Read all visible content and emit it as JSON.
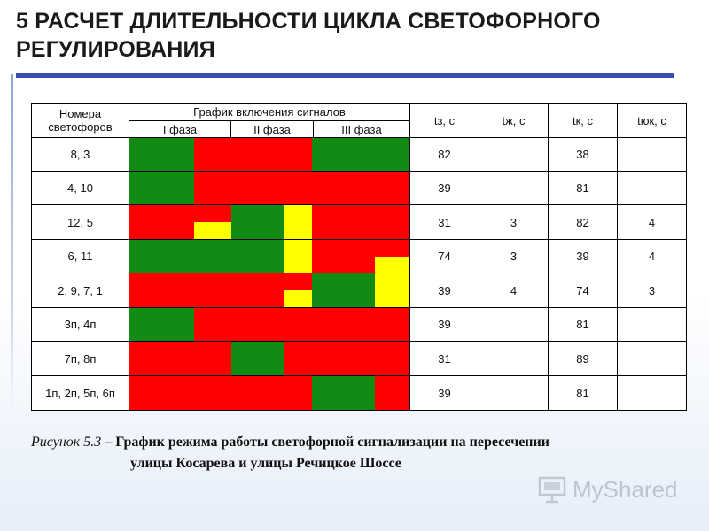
{
  "slide": {
    "title": "5 РАСЧЕТ ДЛИТЕЛЬНОСТИ ЦИКЛА СВЕТОФОРНОГО РЕГУЛИРОВАНИЯ"
  },
  "table": {
    "header_numbers_line1": "Номера",
    "header_numbers_line2": "светофоров",
    "header_schedule": "График включения сигналов",
    "phases": [
      "I фаза",
      "II фаза",
      "III фаза"
    ],
    "col_tz": "tз, с",
    "col_tzh": "tж, с",
    "col_tk": "tк, с",
    "col_tyuk": "tюк, с",
    "rows": [
      {
        "label": "8, 3",
        "tz": "82",
        "tzh": "",
        "tk": "38",
        "tyuk": ""
      },
      {
        "label": "4, 10",
        "tz": "39",
        "tzh": "",
        "tk": "81",
        "tyuk": ""
      },
      {
        "label": "12, 5",
        "tz": "31",
        "tzh": "3",
        "tk": "82",
        "tyuk": "4"
      },
      {
        "label": "6, 11",
        "tz": "74",
        "tzh": "3",
        "tk": "39",
        "tyuk": "4"
      },
      {
        "label": "2, 9, 7, 1",
        "tz": "39",
        "tzh": "4",
        "tk": "74",
        "tyuk": "3"
      },
      {
        "label": "3п, 4п",
        "tz": "39",
        "tzh": "",
        "tk": "81",
        "tyuk": ""
      },
      {
        "label": "7п, 8п",
        "tz": "31",
        "tzh": "",
        "tk": "89",
        "tyuk": ""
      },
      {
        "label": "1п, 2п, 5п, 6п",
        "tz": "39",
        "tzh": "",
        "tk": "81",
        "tyuk": ""
      }
    ]
  },
  "caption": {
    "lead": "Рисунок 5.3 – ",
    "main_line1": "График режима работы светофорной сигнализации на пересечении",
    "main_line2": "улицы Косарева и улицы Речицкое Шоссе"
  },
  "watermark": {
    "text": "MyShared"
  },
  "colors": {
    "green": "#138a13",
    "red": "#ff0000",
    "yellow": "#ffff00",
    "title_rule": "#3b4fb0"
  }
}
